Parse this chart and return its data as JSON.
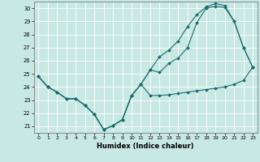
{
  "xlabel": "Humidex (Indice chaleur)",
  "xlim": [
    -0.5,
    23.5
  ],
  "ylim": [
    20.5,
    30.5
  ],
  "xticks": [
    0,
    1,
    2,
    3,
    4,
    5,
    6,
    7,
    8,
    9,
    10,
    11,
    12,
    13,
    14,
    15,
    16,
    17,
    18,
    19,
    20,
    21,
    22,
    23
  ],
  "yticks": [
    21,
    22,
    23,
    24,
    25,
    26,
    27,
    28,
    29,
    30
  ],
  "background_color": "#c8e8e4",
  "grid_color": "#ffffff",
  "line_color": "#1a6e6e",
  "line1_y": [
    24.8,
    24.0,
    23.6,
    23.1,
    23.1,
    22.6,
    21.9,
    20.75,
    21.05,
    21.5,
    23.35,
    24.2,
    23.35,
    23.35,
    23.4,
    23.5,
    23.6,
    23.7,
    23.8,
    23.9,
    24.0,
    24.2,
    24.5,
    25.5
  ],
  "line2_y": [
    24.8,
    24.0,
    23.6,
    23.1,
    23.1,
    22.6,
    21.9,
    20.75,
    21.05,
    21.5,
    23.35,
    24.2,
    25.3,
    25.1,
    25.8,
    26.2,
    27.0,
    28.9,
    30.0,
    30.15,
    30.05,
    29.0,
    27.0,
    25.5
  ],
  "line3_y": [
    24.8,
    24.0,
    23.6,
    23.1,
    23.1,
    22.6,
    21.9,
    20.75,
    21.05,
    21.5,
    23.35,
    24.2,
    25.3,
    26.3,
    26.8,
    27.5,
    28.6,
    29.5,
    30.1,
    30.35,
    30.2,
    29.0,
    27.0,
    25.5
  ]
}
